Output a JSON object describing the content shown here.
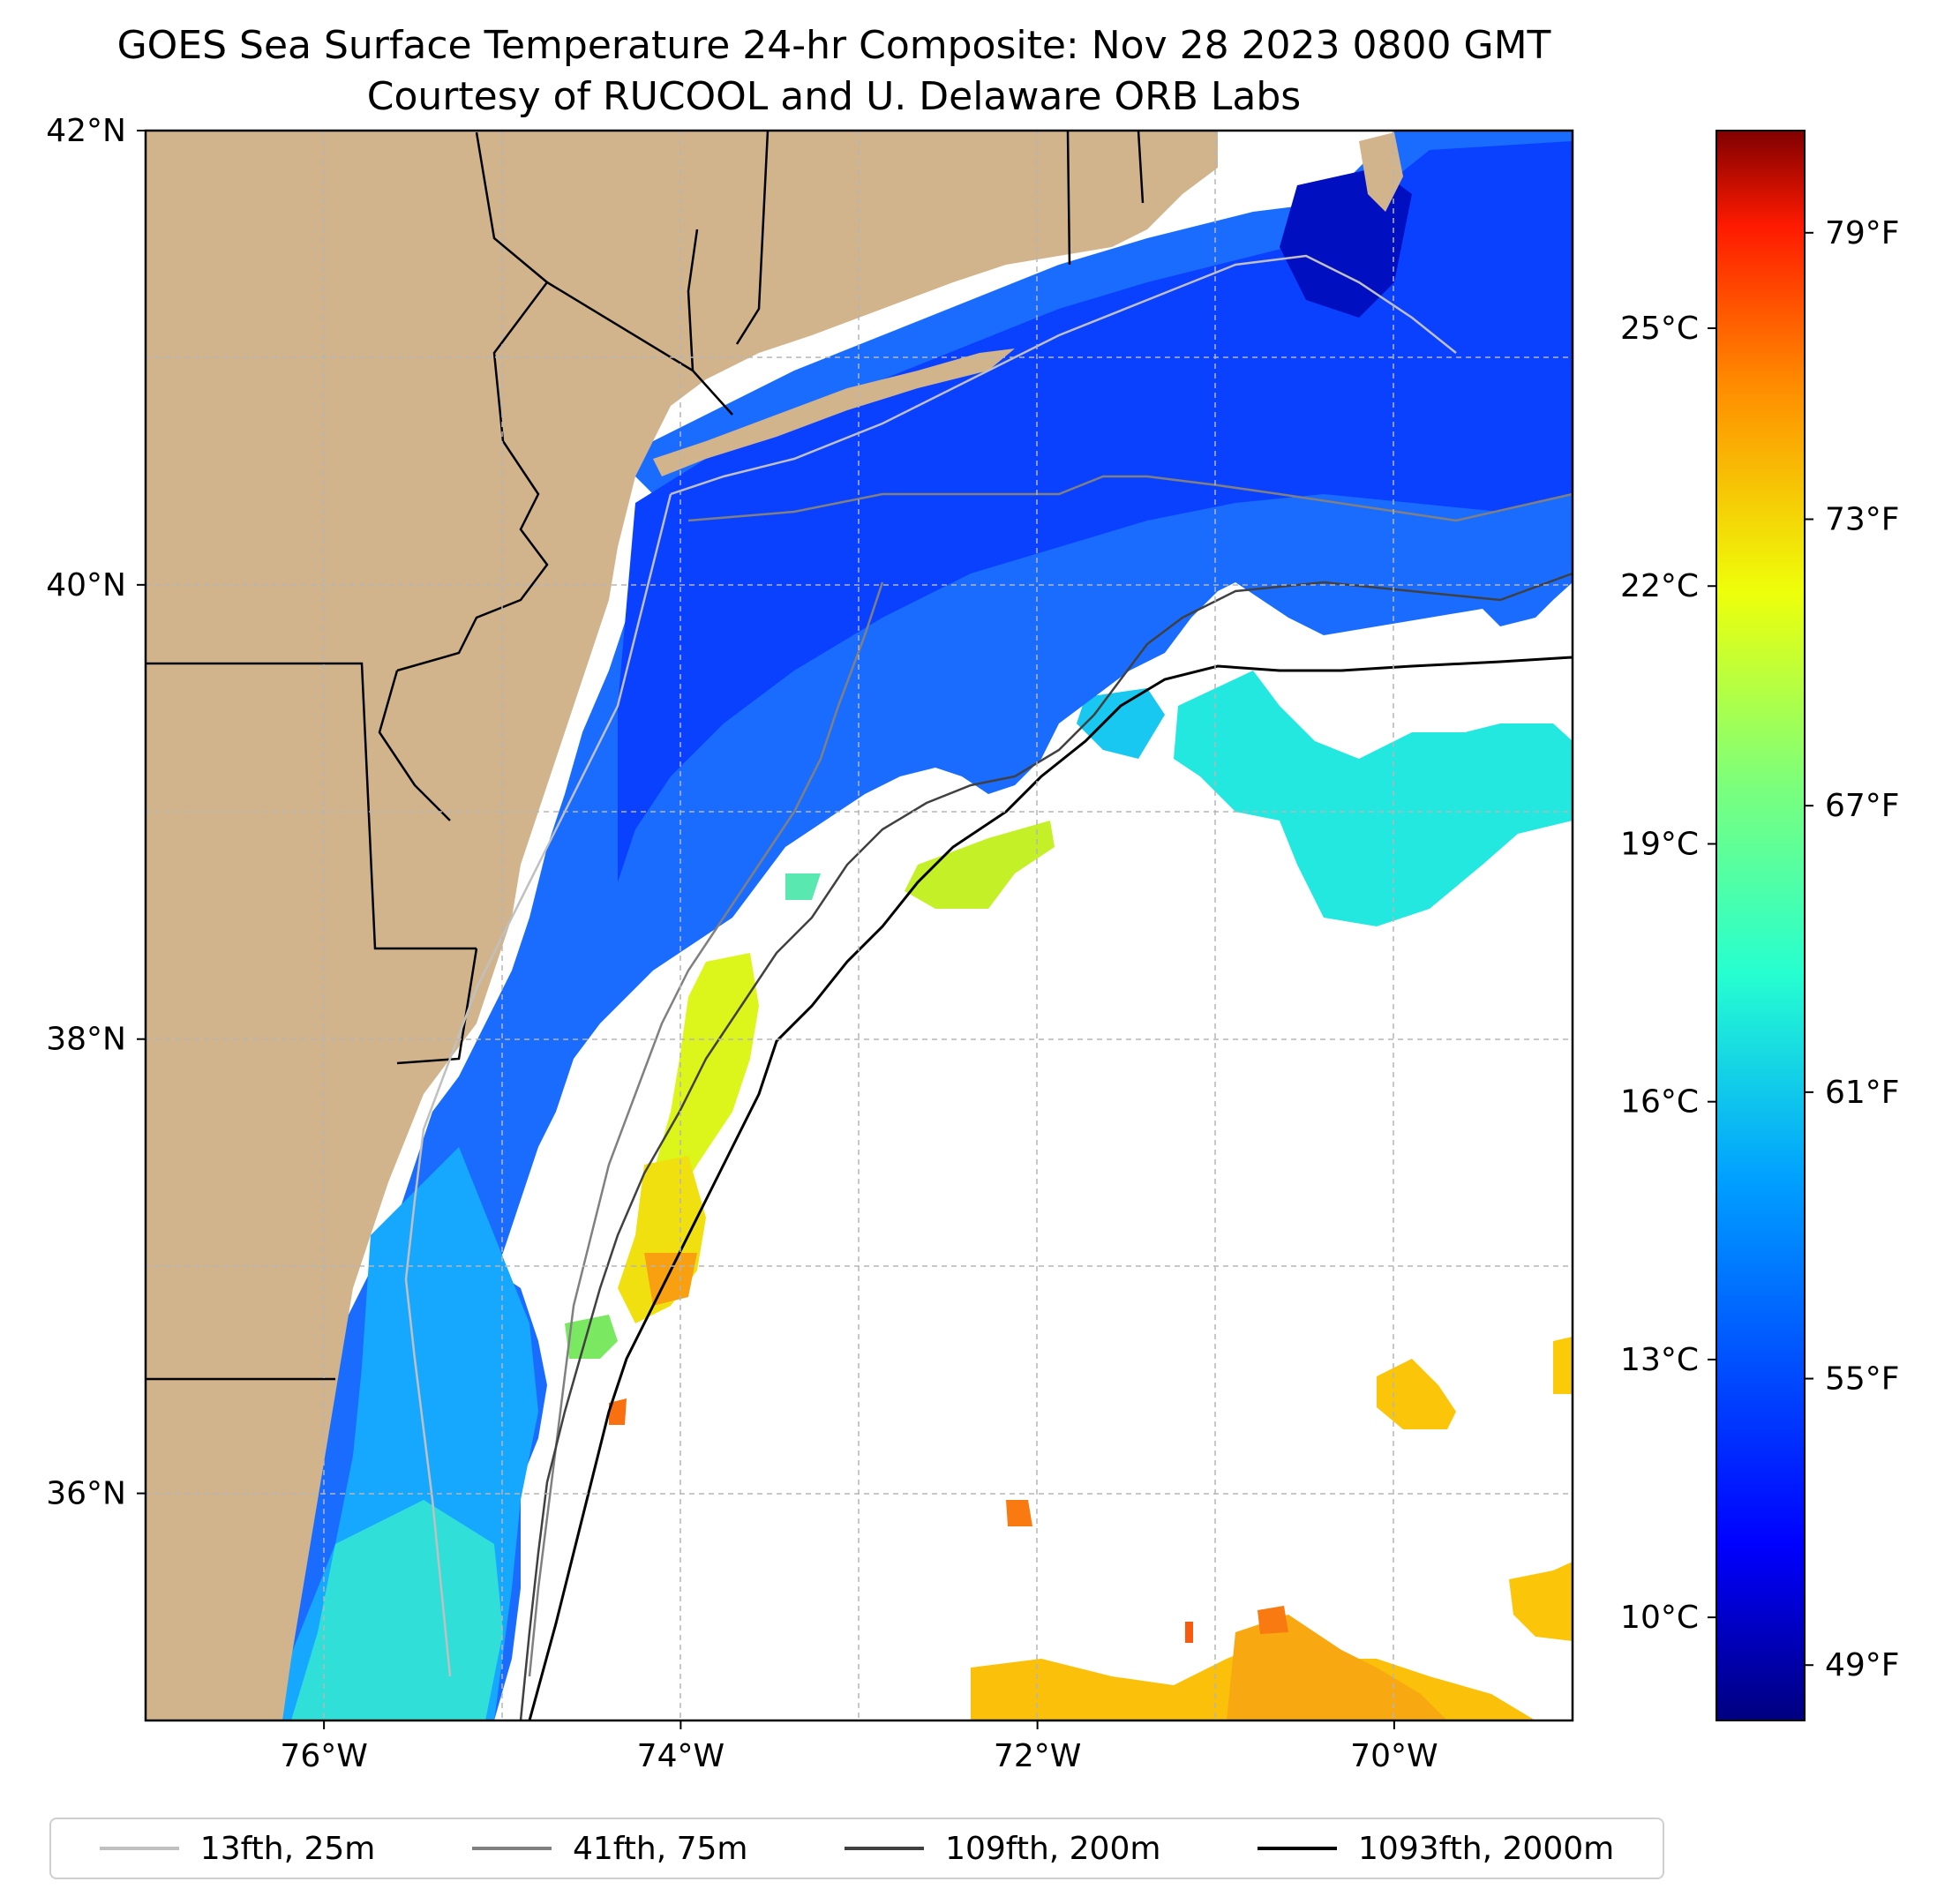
{
  "title": {
    "line1": "GOES Sea Surface Temperature 24-hr Composite: Nov 28 2023 0800 GMT",
    "line2": "Courtesy of RUCOOL and U. Delaware ORB Labs"
  },
  "map": {
    "lon_range": [
      -77,
      -69
    ],
    "lat_range": [
      35,
      42
    ],
    "lon_ticks": [
      {
        "value": -76,
        "label": "76°W"
      },
      {
        "value": -74,
        "label": "74°W"
      },
      {
        "value": -72,
        "label": "72°W"
      },
      {
        "value": -70,
        "label": "70°W"
      }
    ],
    "lat_ticks": [
      {
        "value": 42,
        "label": "42°N"
      },
      {
        "value": 40,
        "label": "40°N"
      },
      {
        "value": 38,
        "label": "38°N"
      },
      {
        "value": 36,
        "label": "36°N"
      }
    ],
    "grid": true,
    "land_color": "#d2b48c",
    "no_data_color": "#ffffff"
  },
  "colorbar": {
    "colormap": "jet",
    "celsius_ticks": [
      {
        "value": 25,
        "label": "25°C"
      },
      {
        "value": 22,
        "label": "22°C"
      },
      {
        "value": 19,
        "label": "19°C"
      },
      {
        "value": 16,
        "label": "16°C"
      },
      {
        "value": 13,
        "label": "13°C"
      },
      {
        "value": 10,
        "label": "10°C"
      }
    ],
    "fahrenheit_ticks": [
      {
        "label": "79°F"
      },
      {
        "label": "73°F"
      },
      {
        "label": "67°F"
      },
      {
        "label": "61°F"
      },
      {
        "label": "55°F"
      },
      {
        "label": "49°F"
      }
    ]
  },
  "legend": {
    "placement": "bottom",
    "items": [
      {
        "label": "13fth, 25m",
        "color": "#c0c0c0"
      },
      {
        "label": "41fth, 75m",
        "color": "#808080"
      },
      {
        "label": "109fth, 200m",
        "color": "#404040"
      },
      {
        "label": "1093fth, 2000m",
        "color": "#000000"
      }
    ]
  }
}
